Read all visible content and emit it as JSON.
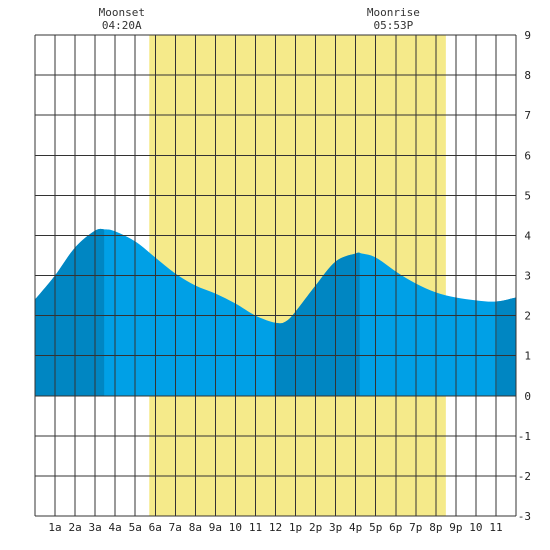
{
  "chart_data": {
    "type": "area",
    "title": "",
    "xlabel": "",
    "ylabel": "",
    "x_unit": "hour of day",
    "xlim": [
      0,
      24
    ],
    "ylim": [
      -3,
      9
    ],
    "grid": true,
    "y_ticks": [
      -3,
      -2,
      -1,
      0,
      1,
      2,
      3,
      4,
      5,
      6,
      7,
      8,
      9
    ],
    "x_ticks": [
      {
        "hour": 1,
        "label": "1a"
      },
      {
        "hour": 2,
        "label": "2a"
      },
      {
        "hour": 3,
        "label": "3a"
      },
      {
        "hour": 4,
        "label": "4a"
      },
      {
        "hour": 5,
        "label": "5a"
      },
      {
        "hour": 6,
        "label": "6a"
      },
      {
        "hour": 7,
        "label": "7a"
      },
      {
        "hour": 8,
        "label": "8a"
      },
      {
        "hour": 9,
        "label": "9a"
      },
      {
        "hour": 10,
        "label": "10"
      },
      {
        "hour": 11,
        "label": "11"
      },
      {
        "hour": 12,
        "label": "12"
      },
      {
        "hour": 13,
        "label": "1p"
      },
      {
        "hour": 14,
        "label": "2p"
      },
      {
        "hour": 15,
        "label": "3p"
      },
      {
        "hour": 16,
        "label": "4p"
      },
      {
        "hour": 17,
        "label": "5p"
      },
      {
        "hour": 18,
        "label": "6p"
      },
      {
        "hour": 19,
        "label": "7p"
      },
      {
        "hour": 20,
        "label": "8p"
      },
      {
        "hour": 21,
        "label": "9p"
      },
      {
        "hour": 22,
        "label": "10"
      },
      {
        "hour": 23,
        "label": "11"
      }
    ],
    "daylight": [
      5.7,
      20.5
    ],
    "dark_bands": [
      [
        0,
        3.45
      ],
      [
        11.95,
        16.2
      ],
      [
        23.05,
        24
      ]
    ],
    "series": [
      {
        "x": [
          0,
          1,
          2,
          3,
          3.5,
          4,
          5,
          6,
          7,
          8,
          9,
          10,
          11,
          12,
          12.5,
          13,
          14,
          15,
          16,
          16.3,
          17,
          18,
          19,
          20,
          21,
          22,
          23,
          24
        ],
        "y": [
          2.4,
          3.0,
          3.7,
          4.12,
          4.15,
          4.1,
          3.85,
          3.45,
          3.05,
          2.75,
          2.55,
          2.3,
          2.0,
          1.82,
          1.85,
          2.1,
          2.75,
          3.35,
          3.55,
          3.55,
          3.45,
          3.1,
          2.8,
          2.58,
          2.45,
          2.38,
          2.35,
          2.45
        ]
      }
    ],
    "annotations": [
      {
        "label": "Moonset",
        "time": "04:20A",
        "hour": 4.33
      },
      {
        "label": "Moonrise",
        "time": "05:53P",
        "hour": 17.88
      }
    ],
    "colors": {
      "daylight": "#f5ea8a",
      "water_light": "#00a0e6",
      "water_dark": "#0086c2",
      "grid": "#333333"
    }
  }
}
